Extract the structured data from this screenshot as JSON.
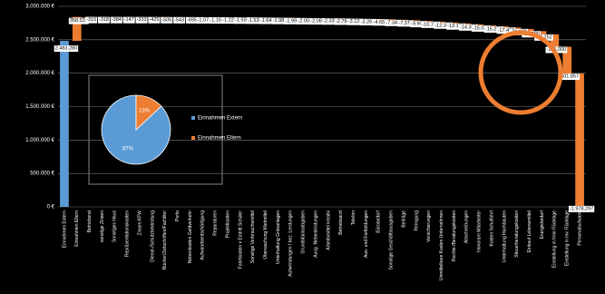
{
  "chart_data": [
    {
      "type": "waterfall",
      "categories": [
        "Einnahmen Extern",
        "Einnahmen Eltern",
        "Betriebsrat",
        "sonstige Zinsen",
        "Sonstiges Haus",
        "Repräsentationskosten",
        "Zinsen KFW",
        "Dienst-/Schutzbekleidung",
        "Bücher/Zeitschriften/Fachliter",
        "Porto",
        "Nebenkosten Geldverkehr",
        "Aufwandsentschädigung",
        "Reparaturen",
        "Projektkosten",
        "Fahrtkosten v Eintritt Schüler",
        "Sonstige Verbrauchsmittel",
        "Überwachung Mietmittel",
        "Unterhaltung Grünanlagen",
        "Aufwendungen f bez. Leistungen",
        "Grundstücksabgaben",
        "Ausg. Nebenleistungen",
        "Arbeitsmittel kreativ",
        "Betriebsarzt",
        "Telefon",
        "Aus- und Fortbildungen",
        "Bürobedarf",
        "Sonstige Geschäftsausgaben",
        "Beiträge",
        "Reinigung",
        "Versicherungen",
        "Unmittelbare Kosten Unternehmen",
        "Rechts-/Beratungskosten",
        "Abschreibungen",
        "Honorare Mitarbeiter",
        "Kosten Schulfahrt",
        "Unterhaltung Hochbauten",
        "Steuerberatungskosten",
        "Einkauf Lebensmittel",
        "Energiebedarf",
        "Einstellung in freie Rücklage",
        "Einstellung in Inv. Rücklage",
        "Personalaufwand"
      ],
      "values": [
        2483280,
        358533,
        -315,
        -318,
        -384,
        -147,
        -333,
        -425,
        -505,
        -543,
        -695,
        -1070,
        -1160,
        -1220,
        -1500,
        -1530,
        -1640,
        -1980,
        -1990,
        -2000,
        -2080,
        -2330,
        -2760,
        -3120,
        -3260,
        -4650,
        -7340,
        -7370,
        -9900,
        -10700,
        -12300,
        -13100,
        -14300,
        -15000,
        -15200,
        -17400,
        -21100,
        -33300,
        -48252,
        -185000,
        -401857,
        -1978297
      ],
      "value_labels": [
        "2.483.280",
        "358.533",
        "-315",
        "-318",
        "-384",
        "-147",
        "-333",
        "-425",
        "-505",
        "-543",
        "-695",
        "-1.070",
        "-1.160",
        "-1.220",
        "-1.500",
        "-1.530",
        "-1.640",
        "-1.980",
        "-1.990",
        "-2.000",
        "-2.080",
        "-2.330",
        "-2.760",
        "-3.120",
        "-3.260",
        "-4.650",
        "-7.340",
        "-7.370",
        "-9.900",
        "-10.700",
        "-12.300",
        "-13.100",
        "-14.300",
        "-15.000",
        "-15.200",
        "-17.400",
        "-21.100",
        "-33.300",
        "-48.252",
        "-185.000",
        "-401.857",
        "-1.978.297"
      ],
      "first_color": "#5b9bd5",
      "color": "#ed7d31",
      "ylim": [
        0,
        3000000
      ],
      "yticks": [
        {
          "value": 0,
          "label": "0 €"
        },
        {
          "value": 500000,
          "label": "500.000 €"
        },
        {
          "value": 1000000,
          "label": "1.000.000 €"
        },
        {
          "value": 1500000,
          "label": "1.500.000 €"
        },
        {
          "value": 2000000,
          "label": "2.000.000 €"
        },
        {
          "value": 2500000,
          "label": "2.500.000 €"
        },
        {
          "value": 3000000,
          "label": "3.000.000 €"
        }
      ],
      "grid": true
    },
    {
      "type": "pie",
      "categories": [
        "Einnahmen Extern",
        "Einnahmen Eltern"
      ],
      "values": [
        87,
        13
      ],
      "value_labels": [
        "87%",
        "13%"
      ],
      "colors": [
        "#5b9bd5",
        "#ed7d31"
      ]
    }
  ]
}
